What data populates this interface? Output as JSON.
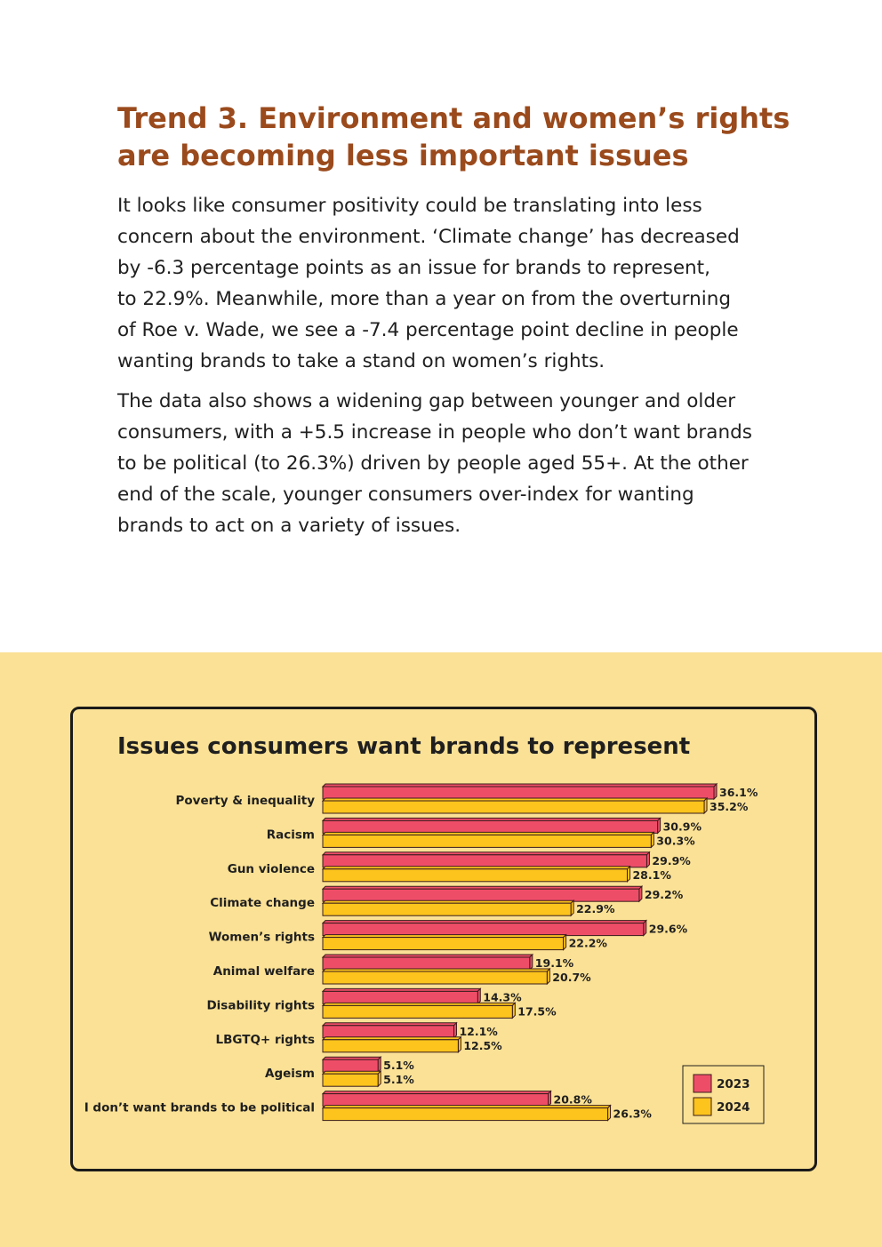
{
  "article": {
    "heading_lines": [
      "Trend 3. Environment and women’s rights",
      "are becoming less important issues"
    ],
    "paragraph1_lines": [
      "It looks like consumer positivity could be translating into less",
      "concern about the environment. ‘Climate change’ has decreased",
      "by -6.3 percentage points as an issue for brands to represent,",
      "to 22.9%. Meanwhile, more than a year on from the overturning",
      "of Roe v. Wade, we see a -7.4 percentage point decline in people",
      "wanting brands to take a stand on women’s rights."
    ],
    "paragraph2_lines": [
      "The data also shows a widening gap between younger and older",
      "consumers, with a +5.5 increase in people who don’t want brands",
      "to be political (to 26.3%) driven by people aged 55+. At the other",
      "end of the scale, younger consumers over-index for wanting",
      "brands to act on a variety of issues."
    ]
  },
  "chart_data": {
    "type": "bar",
    "orientation": "horizontal",
    "title": "Issues consumers want brands to represent",
    "categories": [
      "Poverty & inequality",
      "Racism",
      "Gun violence",
      "Climate change",
      "Women’s rights",
      "Animal welfare",
      "Disability rights",
      "LBGTQ+ rights",
      "Ageism",
      "I don’t want brands to be political"
    ],
    "series": [
      {
        "name": "2023",
        "color": "#ee4d68",
        "values": [
          36.1,
          30.9,
          29.9,
          29.2,
          29.6,
          19.1,
          14.3,
          12.1,
          5.1,
          20.8
        ],
        "labels": [
          "36.1%",
          "30.9%",
          "29.9%",
          "29.2%",
          "29.6%",
          "19.1%",
          "14.3%",
          "12.1%",
          "5.1%",
          "20.8%"
        ]
      },
      {
        "name": "2024",
        "color": "#fcc41c",
        "values": [
          35.2,
          30.3,
          28.1,
          22.9,
          22.2,
          20.7,
          17.5,
          12.5,
          5.1,
          26.3
        ],
        "labels": [
          "35.2%",
          "30.3%",
          "28.1%",
          "22.9%",
          "22.2%",
          "20.7%",
          "17.5%",
          "12.5%",
          "5.1%",
          "26.3%"
        ]
      }
    ],
    "xlim": [
      0,
      36.1
    ],
    "xlabel": "",
    "ylabel": "",
    "grid": false,
    "legend": "bottom-right"
  },
  "colors": {
    "heading": "#9a4a1c",
    "band_background": "#fbe195",
    "bar_outline": "#3a1d1d"
  }
}
